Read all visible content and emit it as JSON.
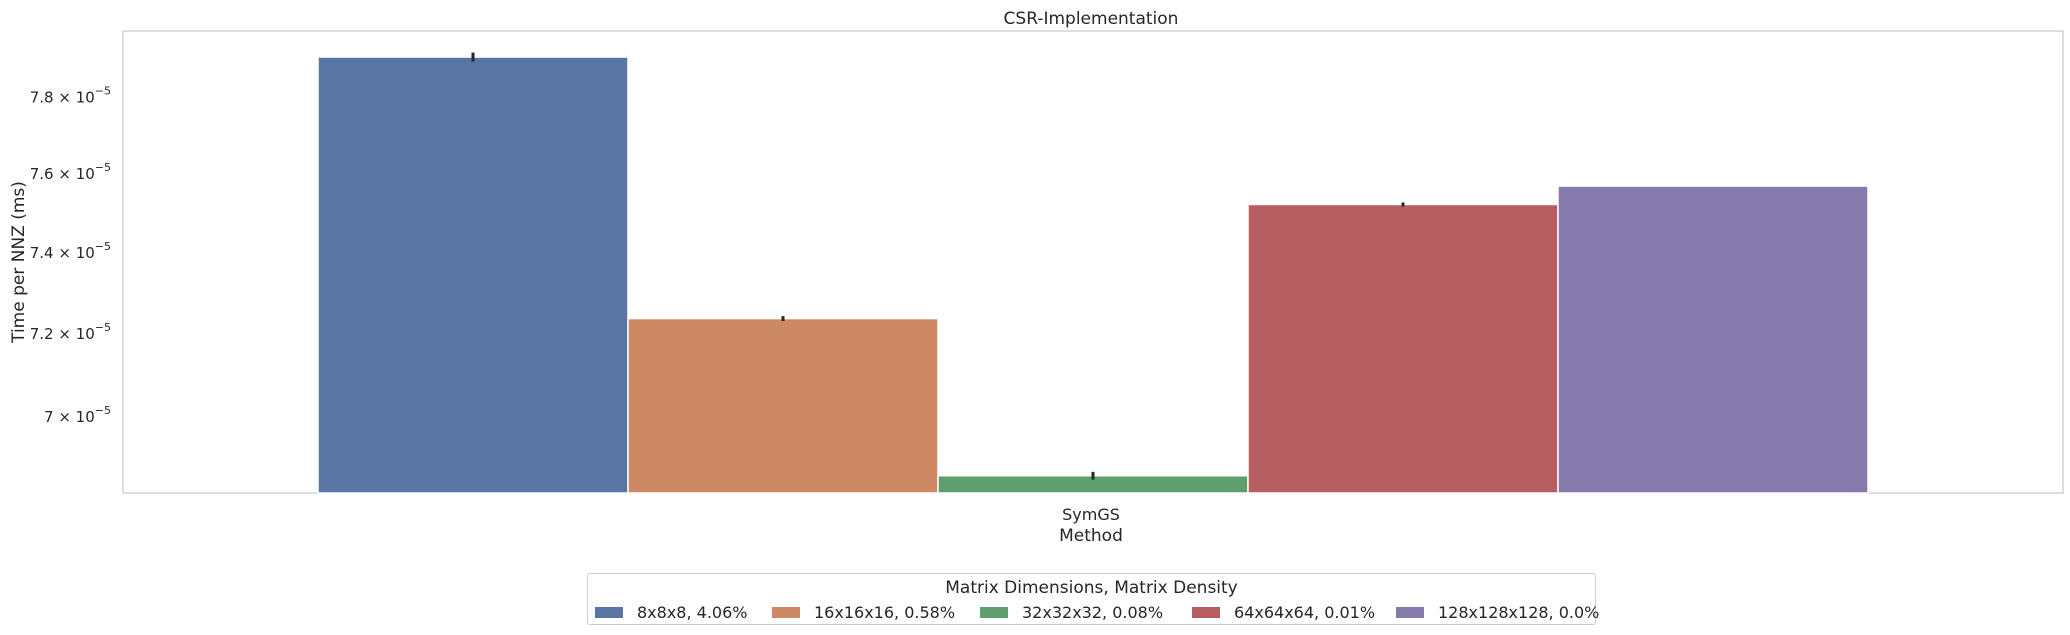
{
  "chart_data": {
    "type": "bar",
    "title": "CSR-Implementation",
    "xlabel": "Method",
    "ylabel": "Time per NNZ (ms)",
    "yscale": "log",
    "categories": [
      "SymGS"
    ],
    "ylim": [
      6.82e-05,
      7.975e-05
    ],
    "yticks": [
      {
        "value": 7e-05,
        "label_mant": "7",
        "label_exp": "−5"
      },
      {
        "value": 7.2e-05,
        "label_mant": "7.2",
        "label_exp": "−5"
      },
      {
        "value": 7.4e-05,
        "label_mant": "7.4",
        "label_exp": "−5"
      },
      {
        "value": 7.6e-05,
        "label_mant": "7.6",
        "label_exp": "−5"
      },
      {
        "value": 7.8e-05,
        "label_mant": "7.8",
        "label_exp": "−5"
      }
    ],
    "grid": false,
    "legend_title": "Matrix Dimensions, Matrix Density",
    "legend_position": "bottom-center",
    "series": [
      {
        "name": "8x8x8, 4.06%",
        "color": "#5975a4",
        "values": [
          7.905e-05
        ],
        "err": [
          1.2e-07
        ]
      },
      {
        "name": "16x16x16, 0.58%",
        "color": "#cc8963",
        "values": [
          7.235e-05
        ],
        "err": [
          6e-08
        ]
      },
      {
        "name": "32x32x32, 0.08%",
        "color": "#5f9e6e",
        "values": [
          6.86e-05
        ],
        "err": [
          9e-08
        ]
      },
      {
        "name": "64x64x64, 0.01%",
        "color": "#b55d60",
        "values": [
          7.52e-05
        ],
        "err": [
          5e-08
        ]
      },
      {
        "name": "128x128x128, 0.0%",
        "color": "#857aab",
        "values": [
          7.567e-05
        ],
        "err": [
          0.0
        ]
      }
    ]
  }
}
